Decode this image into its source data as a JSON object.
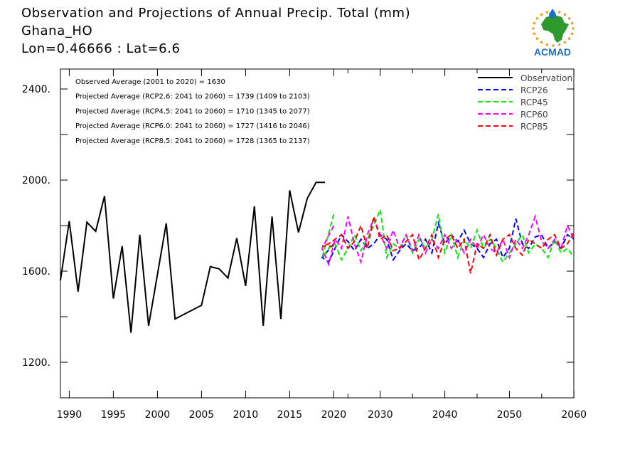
{
  "header": {
    "title": "Observation and Projections of Annual Precip. Total (mm)",
    "station": "Ghana_HO",
    "coords": "Lon=0.46666 : Lat=6.6"
  },
  "logo": {
    "text": "ACMAD"
  },
  "colors": {
    "observation": "#000000",
    "rcp26": "#0000ff",
    "rcp45": "#00ee00",
    "rcp60": "#ff00ff",
    "rcp85": "#ff0000",
    "logo_text": "#1f6fc0",
    "logo_africa": "#2e9a2e",
    "logo_sun": "#f0a020"
  },
  "chart_data": {
    "type": "line",
    "xlim": [
      1989,
      2060
    ],
    "ylim": [
      1040,
      2500
    ],
    "x_ticks": [
      1990,
      1995,
      2000,
      2005,
      2010,
      2015,
      2020,
      2030,
      2040,
      2050,
      2060
    ],
    "x_tick_labels": [
      "1990",
      "1995",
      "2000",
      "2005",
      "2010",
      "2015",
      "2020",
      "2030",
      "2040",
      "2050",
      "2060"
    ],
    "y_ticks": [
      1200,
      1600,
      2000,
      2400
    ],
    "y_tick_labels": [
      "1200.",
      "1600.",
      "2000.",
      "2400."
    ],
    "x_minor_ticks": [
      2025,
      2035,
      2045,
      2055
    ],
    "y_minor_ticks": [
      1400,
      1800,
      2200
    ],
    "annotations": [
      "Observed Average (2001 to 2020) = 1630",
      "Projected Average (RCP2.6: 2041 to 2060) = 1739 (1409 to 2103)",
      "Projected Average (RCP4.5: 2041 to 2060) = 1710 (1345 to 2077)",
      "Projected Average (RCP6.0: 2041 to 2060) = 1727 (1416 to 2046)",
      "Projected Average (RCP8.5: 2041 to 2060) = 1728 (1365 to 2137)"
    ],
    "legend_position": "top-right",
    "series": [
      {
        "name": "Observation",
        "style": "solid",
        "color_key": "observation",
        "x": [
          1989,
          1990,
          1991,
          1992,
          1993,
          1994,
          1995,
          1996,
          1997,
          1998,
          1999,
          2001,
          2002,
          2005,
          2006,
          2007,
          2008,
          2009,
          2010,
          2011,
          2012,
          2013,
          2014,
          2015,
          2016,
          2017,
          2018,
          2019
        ],
        "y": [
          1560,
          1820,
          1510,
          1815,
          1775,
          1930,
          1480,
          1710,
          1330,
          1760,
          1360,
          1810,
          1390,
          1450,
          1620,
          1610,
          1570,
          1745,
          1535,
          1885,
          1360,
          1840,
          1390,
          1955,
          1770,
          1920,
          1990,
          1990
        ]
      },
      {
        "name": "RCP26",
        "style": "dashed",
        "color_key": "rcp26",
        "x": [
          2020,
          2021,
          2022,
          2023,
          2024,
          2025,
          2026,
          2027,
          2028,
          2029,
          2030,
          2031,
          2032,
          2033,
          2034,
          2035,
          2036,
          2037,
          2038,
          2039,
          2040,
          2041,
          2042,
          2043,
          2044,
          2045,
          2046,
          2047,
          2048,
          2049,
          2050,
          2051,
          2052,
          2053,
          2054,
          2055,
          2056,
          2057,
          2058,
          2059,
          2060
        ],
        "y": [
          1720,
          1660,
          1640,
          1700,
          1760,
          1730,
          1690,
          1740,
          1700,
          1720,
          1760,
          1740,
          1650,
          1690,
          1720,
          1690,
          1700,
          1740,
          1680,
          1810,
          1720,
          1760,
          1730,
          1780,
          1720,
          1700,
          1660,
          1720,
          1740,
          1660,
          1700,
          1830,
          1720,
          1700,
          1750,
          1760,
          1700,
          1730,
          1700,
          1760,
          1740
        ]
      },
      {
        "name": "RCP45",
        "style": "dashed",
        "color_key": "rcp45",
        "x": [
          2020,
          2021,
          2022,
          2023,
          2024,
          2025,
          2026,
          2027,
          2028,
          2029,
          2030,
          2031,
          2032,
          2033,
          2034,
          2035,
          2036,
          2037,
          2038,
          2039,
          2040,
          2041,
          2042,
          2043,
          2044,
          2045,
          2046,
          2047,
          2048,
          2049,
          2050,
          2051,
          2052,
          2053,
          2054,
          2055,
          2056,
          2057,
          2058,
          2059,
          2060
        ],
        "y": [
          1850,
          1660,
          1700,
          1720,
          1650,
          1700,
          1760,
          1690,
          1740,
          1800,
          1870,
          1660,
          1720,
          1700,
          1760,
          1680,
          1740,
          1700,
          1740,
          1850,
          1680,
          1760,
          1660,
          1740,
          1700,
          1780,
          1700,
          1740,
          1700,
          1640,
          1680,
          1720,
          1760,
          1680,
          1720,
          1700,
          1660,
          1740,
          1680,
          1700,
          1660
        ]
      },
      {
        "name": "RCP60",
        "style": "dashed",
        "color_key": "rcp60",
        "x": [
          2020,
          2021,
          2022,
          2023,
          2024,
          2025,
          2026,
          2027,
          2028,
          2029,
          2030,
          2031,
          2032,
          2033,
          2034,
          2035,
          2036,
          2037,
          2038,
          2039,
          2040,
          2041,
          2042,
          2043,
          2044,
          2045,
          2046,
          2047,
          2048,
          2049,
          2050,
          2051,
          2052,
          2053,
          2054,
          2055,
          2056,
          2057,
          2058,
          2059,
          2060
        ],
        "y": [
          1800,
          1700,
          1630,
          1740,
          1700,
          1840,
          1720,
          1640,
          1760,
          1830,
          1760,
          1700,
          1780,
          1700,
          1760,
          1690,
          1760,
          1680,
          1740,
          1700,
          1760,
          1700,
          1740,
          1680,
          1740,
          1700,
          1760,
          1700,
          1680,
          1740,
          1660,
          1740,
          1700,
          1760,
          1840,
          1730,
          1700,
          1740,
          1700,
          1800,
          1740
        ]
      },
      {
        "name": "RCP85",
        "style": "dashed",
        "color_key": "rcp85",
        "x": [
          2020,
          2021,
          2022,
          2023,
          2024,
          2025,
          2026,
          2027,
          2028,
          2029,
          2030,
          2031,
          2032,
          2033,
          2034,
          2035,
          2036,
          2037,
          2038,
          2039,
          2040,
          2041,
          2042,
          2043,
          2044,
          2045,
          2046,
          2047,
          2048,
          2049,
          2050,
          2051,
          2052,
          2053,
          2054,
          2055,
          2056,
          2057,
          2058,
          2059,
          2060
        ],
        "y": [
          1710,
          1710,
          1720,
          1740,
          1760,
          1700,
          1730,
          1800,
          1700,
          1840,
          1740,
          1760,
          1690,
          1700,
          1730,
          1760,
          1650,
          1700,
          1760,
          1660,
          1740,
          1760,
          1700,
          1740,
          1590,
          1720,
          1700,
          1760,
          1670,
          1740,
          1760,
          1700,
          1670,
          1740,
          1720,
          1700,
          1740,
          1760,
          1700,
          1720,
          1770
        ]
      }
    ]
  }
}
